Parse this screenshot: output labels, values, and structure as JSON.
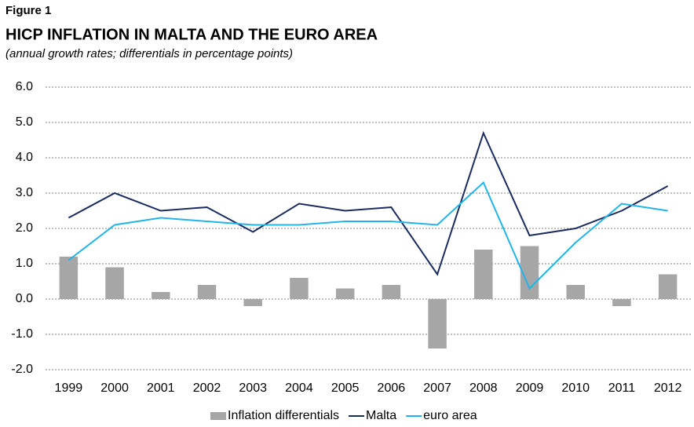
{
  "chart_data": {
    "type": "bar",
    "figure_label": "Figure 1",
    "title": "HICP INFLATION IN MALTA AND THE EURO AREA",
    "subtitle": "(annual growth rates; differentials in percentage points)",
    "categories": [
      "1999",
      "2000",
      "2001",
      "2002",
      "2003",
      "2004",
      "2005",
      "2006",
      "2007",
      "2008",
      "2009",
      "2010",
      "2011",
      "2012"
    ],
    "series": [
      {
        "name": "Inflation differentials",
        "type": "bar",
        "color": "#a6a6a6",
        "values": [
          1.2,
          0.9,
          0.2,
          0.4,
          -0.2,
          0.6,
          0.3,
          0.4,
          -1.4,
          1.4,
          1.5,
          0.4,
          -0.2,
          0.7
        ]
      },
      {
        "name": "Malta",
        "type": "line",
        "color": "#1a2b5f",
        "values": [
          2.3,
          3.0,
          2.5,
          2.6,
          1.9,
          2.7,
          2.5,
          2.6,
          0.7,
          4.7,
          1.8,
          2.0,
          2.5,
          3.2
        ]
      },
      {
        "name": "euro area",
        "type": "line",
        "color": "#20b4e9",
        "values": [
          1.1,
          2.1,
          2.3,
          2.2,
          2.1,
          2.1,
          2.2,
          2.2,
          2.1,
          3.3,
          0.3,
          1.6,
          2.7,
          2.5
        ]
      }
    ],
    "ylim": [
      -2,
      6
    ],
    "yticks": [
      {
        "value": -2,
        "label": "-2.0"
      },
      {
        "value": -1,
        "label": "-1.0"
      },
      {
        "value": 0,
        "label": "0.0"
      },
      {
        "value": 1,
        "label": "1.0"
      },
      {
        "value": 2,
        "label": "2.0"
      },
      {
        "value": 3,
        "label": "3.0"
      },
      {
        "value": 4,
        "label": "4.0"
      },
      {
        "value": 5,
        "label": "5.0"
      },
      {
        "value": 6,
        "label": "6.0"
      }
    ],
    "grid": true,
    "legend": "bottom"
  }
}
